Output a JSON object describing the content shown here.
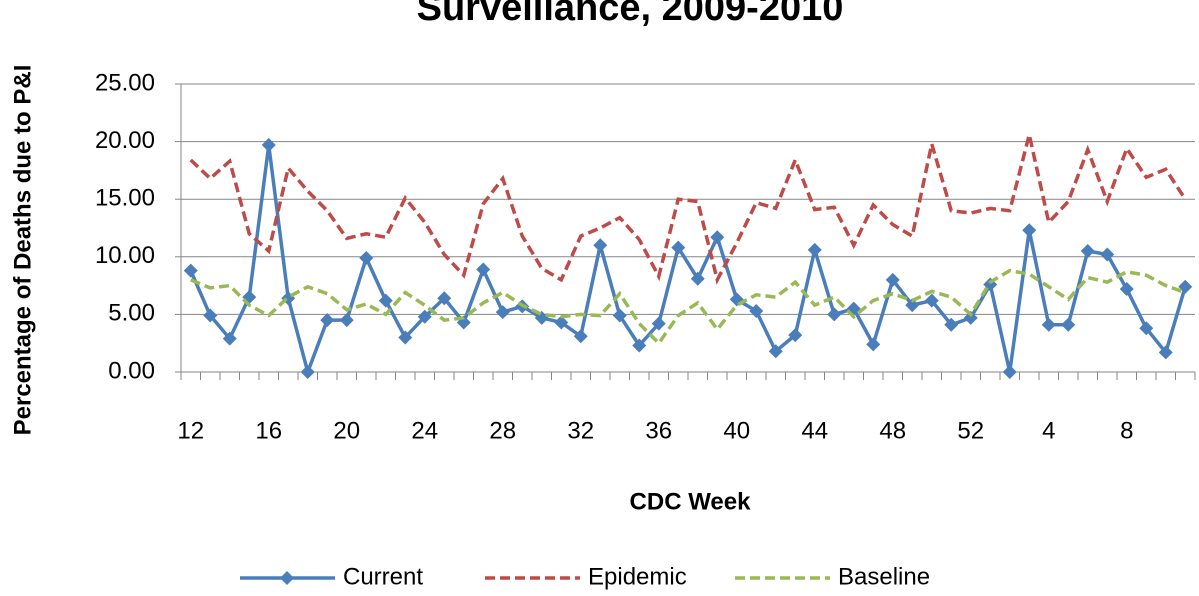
{
  "chart_data": {
    "type": "line",
    "title": "Surveillance, 2009-2010",
    "x_label": "CDC Week",
    "y_label": "Percentage of Deaths due to P&I",
    "categories": [
      "12",
      null,
      null,
      null,
      "16",
      null,
      null,
      null,
      "20",
      null,
      null,
      null,
      "24",
      null,
      null,
      null,
      "28",
      null,
      null,
      null,
      "32",
      null,
      null,
      null,
      "36",
      null,
      null,
      null,
      "40",
      null,
      null,
      null,
      "44",
      null,
      null,
      null,
      "48",
      null,
      null,
      null,
      "52",
      null,
      null,
      null,
      "4",
      null,
      null,
      null,
      "8",
      null,
      null,
      null
    ],
    "series": [
      {
        "name": "Current",
        "color": "#4a7ebb",
        "dash": false,
        "marker": "diamond",
        "values": [
          8.8,
          4.9,
          2.9,
          6.5,
          19.7,
          6.4,
          0,
          4.5,
          4.5,
          9.9,
          6.2,
          3.0,
          4.8,
          6.4,
          4.3,
          8.9,
          5.2,
          5.7,
          4.7,
          4.3,
          3.1,
          11.0,
          4.9,
          2.3,
          4.2,
          10.8,
          8.1,
          11.7,
          6.3,
          5.3,
          1.8,
          3.2,
          10.6,
          5.0,
          5.5,
          2.4,
          8.0,
          5.8,
          6.2,
          4.1,
          4.7,
          7.6,
          0,
          12.3,
          4.1,
          4.1,
          10.5,
          10.2,
          7.2,
          3.8,
          1.7,
          7.4
        ]
      },
      {
        "name": "Epidemic",
        "color": "#be4b48",
        "dash": true,
        "marker": "none",
        "values": [
          18.4,
          16.8,
          18.3,
          12.0,
          10.5,
          17.7,
          15.7,
          14.0,
          11.6,
          12.0,
          11.7,
          15.1,
          13.0,
          10.2,
          8.4,
          14.6,
          16.8,
          11.8,
          9.0,
          8.0,
          11.8,
          12.5,
          13.4,
          11.5,
          8.3,
          15.0,
          14.8,
          8.0,
          11.2,
          14.7,
          14.2,
          18.4,
          14.1,
          14.3,
          11.0,
          14.5,
          12.8,
          11.8,
          19.8,
          14.0,
          13.8,
          14.2,
          14.0,
          20.6,
          13.0,
          14.8,
          19.3,
          14.8,
          19.4,
          16.9,
          17.6,
          15.0
        ]
      },
      {
        "name": "Baseline",
        "color": "#98b954",
        "dash": true,
        "marker": "none",
        "values": [
          8.0,
          7.3,
          7.5,
          5.8,
          4.9,
          6.5,
          7.4,
          6.8,
          5.4,
          5.9,
          5.0,
          6.9,
          5.8,
          4.5,
          4.7,
          6.0,
          6.9,
          5.8,
          5.0,
          4.8,
          5.0,
          4.9,
          6.8,
          4.2,
          2.5,
          4.9,
          6.0,
          3.7,
          5.8,
          6.7,
          6.5,
          7.8,
          5.8,
          6.5,
          4.8,
          6.2,
          6.8,
          6.2,
          7.0,
          6.5,
          5.0,
          7.8,
          8.8,
          8.5,
          7.4,
          6.3,
          8.2,
          7.8,
          8.7,
          8.4,
          7.5,
          6.9
        ]
      }
    ],
    "ylim": [
      0,
      25
    ],
    "yticks": [
      {
        "value": 0,
        "label": "0.00"
      },
      {
        "value": 5,
        "label": "5.00"
      },
      {
        "value": 10,
        "label": "10.00"
      },
      {
        "value": 15,
        "label": "15.00"
      },
      {
        "value": 20,
        "label": "20.00"
      },
      {
        "value": 25,
        "label": "25.00"
      }
    ],
    "grid": true,
    "legend": "bottom"
  }
}
